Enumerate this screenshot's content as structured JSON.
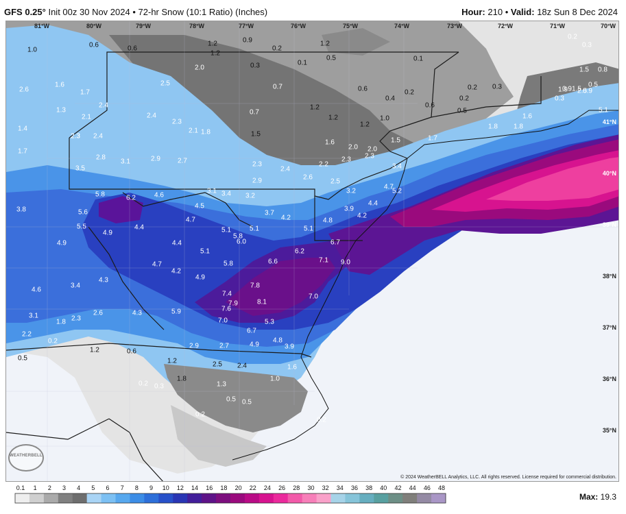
{
  "header": {
    "model": "GFS 0.25°",
    "init": "Init 00z 30 Nov 2024",
    "sep": "•",
    "product": "72-hr Snow (10:1 Ratio) (Inches)",
    "hour_label": "Hour:",
    "hour_value": "210",
    "valid_label": "Valid:",
    "valid_value": "18z Sun 8 Dec 2024"
  },
  "map": {
    "lon_ticks": [
      "81°W",
      "80°W",
      "79°W",
      "78°W",
      "77°W",
      "76°W",
      "75°W",
      "74°W",
      "73°W",
      "72°W",
      "71°W",
      "70°W"
    ],
    "lat_ticks": [
      "41°N",
      "40°N",
      "39°N",
      "38°N",
      "37°N",
      "36°N",
      "35°N"
    ],
    "snow_labels": [
      {
        "t": "1.0"
      },
      {
        "t": "0.6"
      },
      {
        "t": "0.6"
      },
      {
        "t": "1.2"
      },
      {
        "t": "1.2"
      },
      {
        "t": "0.9"
      },
      {
        "t": "0.2"
      },
      {
        "t": "1.2"
      },
      {
        "t": "0.5"
      },
      {
        "t": "0.1"
      },
      {
        "t": "0.3"
      },
      {
        "t": "1.6"
      },
      {
        "t": "2.6"
      },
      {
        "t": "1.7"
      },
      {
        "t": "2.0"
      },
      {
        "t": "2.5"
      },
      {
        "t": "0.7"
      },
      {
        "t": "0.6"
      },
      {
        "t": "0.4"
      },
      {
        "t": "0.2"
      },
      {
        "t": "0.1"
      },
      {
        "t": "0.2"
      },
      {
        "t": "0.3"
      },
      {
        "t": "1.3"
      },
      {
        "t": "2.4"
      },
      {
        "t": "2.1"
      },
      {
        "t": "2.4"
      },
      {
        "t": "2.3"
      },
      {
        "t": "0.7"
      },
      {
        "t": "1.2"
      },
      {
        "t": "1.2"
      },
      {
        "t": "1.0"
      },
      {
        "t": "0.6"
      },
      {
        "t": "0.2"
      },
      {
        "t": "0.5"
      },
      {
        "t": "1.4"
      },
      {
        "t": "2.3"
      },
      {
        "t": "2.4"
      },
      {
        "t": "2.1"
      },
      {
        "t": "1.8"
      },
      {
        "t": "1.5"
      },
      {
        "t": "1.2"
      },
      {
        "t": "1.6"
      },
      {
        "t": "2.0"
      },
      {
        "t": "2.0"
      },
      {
        "t": "1.5"
      },
      {
        "t": "1.7"
      },
      {
        "t": "1.8"
      },
      {
        "t": "1.6"
      },
      {
        "t": "1.7"
      },
      {
        "t": "2.3"
      },
      {
        "t": "2.8"
      },
      {
        "t": "3.1"
      },
      {
        "t": "2.9"
      },
      {
        "t": "2.7"
      },
      {
        "t": "2.3"
      },
      {
        "t": "2.4"
      },
      {
        "t": "2.2"
      },
      {
        "t": "2.3"
      },
      {
        "t": "2.3"
      },
      {
        "t": "3.4"
      },
      {
        "t": "3.5"
      },
      {
        "t": "2.9"
      },
      {
        "t": "2.6"
      },
      {
        "t": "2.5"
      },
      {
        "t": "3.1"
      },
      {
        "t": "3.4"
      },
      {
        "t": "3.2"
      },
      {
        "t": "3.2"
      },
      {
        "t": "4.7"
      },
      {
        "t": "5.2"
      },
      {
        "t": "5.8"
      },
      {
        "t": "6.2"
      },
      {
        "t": "4.6"
      },
      {
        "t": "4.5"
      },
      {
        "t": "3.9"
      },
      {
        "t": "4.4"
      },
      {
        "t": "3.8"
      },
      {
        "t": "5.6"
      },
      {
        "t": "4.4"
      },
      {
        "t": "4.7"
      },
      {
        "t": "3.7"
      },
      {
        "t": "4.2"
      },
      {
        "t": "4.8"
      },
      {
        "t": "4.2"
      },
      {
        "t": "5.5"
      },
      {
        "t": "4.9"
      },
      {
        "t": "5.1"
      },
      {
        "t": "5.1"
      },
      {
        "t": "5.8"
      },
      {
        "t": "5.1"
      },
      {
        "t": "6.0"
      },
      {
        "t": "4.9"
      },
      {
        "t": "4.4"
      },
      {
        "t": "5.1"
      },
      {
        "t": "6.7"
      },
      {
        "t": "6.2"
      },
      {
        "t": "5.8"
      },
      {
        "t": "6.6"
      },
      {
        "t": "7.1"
      },
      {
        "t": "9.0"
      },
      {
        "t": "4.7"
      },
      {
        "t": "4.2"
      },
      {
        "t": "4.9"
      },
      {
        "t": "7.8"
      },
      {
        "t": "3.4"
      },
      {
        "t": "4.3"
      },
      {
        "t": "4.6"
      },
      {
        "t": "7.4"
      },
      {
        "t": "7.0"
      },
      {
        "t": "7.6"
      },
      {
        "t": "7.9"
      },
      {
        "t": "8.1"
      },
      {
        "t": "5.9"
      },
      {
        "t": "4.3"
      },
      {
        "t": "2.6"
      },
      {
        "t": "3.1"
      },
      {
        "t": "7.0"
      },
      {
        "t": "5.3"
      },
      {
        "t": "6.7"
      },
      {
        "t": "1.8"
      },
      {
        "t": "2.3"
      },
      {
        "t": "2.2"
      },
      {
        "t": "0.2"
      },
      {
        "t": "4.8"
      },
      {
        "t": "4.9"
      },
      {
        "t": "3.9"
      },
      {
        "t": "2.9"
      },
      {
        "t": "2.7"
      },
      {
        "t": "0.6"
      },
      {
        "t": "1.2"
      },
      {
        "t": "0.5"
      },
      {
        "t": "1.2"
      },
      {
        "t": "2.5"
      },
      {
        "t": "2.4"
      },
      {
        "t": "1.8"
      },
      {
        "t": "1.0"
      },
      {
        "t": "1.6"
      },
      {
        "t": "0.2"
      },
      {
        "t": "0.3"
      },
      {
        "t": "1.3"
      },
      {
        "t": "0.5"
      },
      {
        "t": "0.5"
      },
      {
        "t": "0.2"
      },
      {
        "t": "0.2"
      },
      {
        "t": "1.8"
      },
      {
        "t": "1.5"
      },
      {
        "t": "2.5"
      },
      {
        "t": "1.9"
      },
      {
        "t": "0.9"
      },
      {
        "t": "0.3"
      },
      {
        "t": "0.9"
      },
      {
        "t": "0.5"
      },
      {
        "t": "0.2"
      },
      {
        "t": "0.3"
      },
      {
        "t": "0.8"
      },
      {
        "t": "1.5"
      },
      {
        "t": "5.1"
      }
    ]
  },
  "copyright": "© 2024 WeatherBELL Analytics, LLC. All rights reserved. License required for commercial distribution.",
  "logo_text": "WEATHERBELL",
  "scale": {
    "ticks": [
      "0.1",
      "1",
      "2",
      "3",
      "4",
      "5",
      "6",
      "7",
      "8",
      "9",
      "10",
      "12",
      "14",
      "16",
      "18",
      "20",
      "22",
      "24",
      "26",
      "28",
      "30",
      "32",
      "34",
      "36",
      "38",
      "40",
      "42",
      "44",
      "46",
      "48"
    ],
    "colors": [
      "#eeeeee",
      "#cfcfcf",
      "#aaaaaa",
      "#808080",
      "#6e6e6e",
      "#a9d4f5",
      "#7cc0f3",
      "#57a8ee",
      "#3c8de6",
      "#2d6fd9",
      "#2750c9",
      "#2935b4",
      "#421e9a",
      "#5e1388",
      "#7c0e7e",
      "#9a0a7d",
      "#b90b86",
      "#d7138f",
      "#eb2a9c",
      "#f25aa9",
      "#f77fb9",
      "#f9a1c9",
      "#a6d3e8",
      "#86c4d9",
      "#66aebf",
      "#58a0a0",
      "#6d8f86",
      "#807f7b",
      "#948aa4",
      "#a996c6"
    ]
  },
  "max_label": "Max:",
  "max_value": "19.3"
}
